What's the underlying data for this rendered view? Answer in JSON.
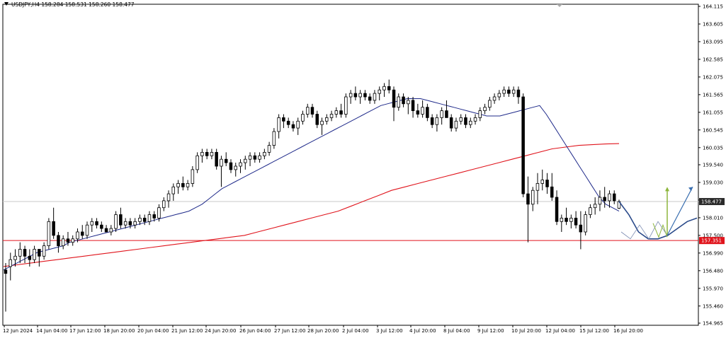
{
  "header": {
    "text": "USDJPY,H4  158.284 158.531 158.260 158.477"
  },
  "colors": {
    "background": "#ffffff",
    "candle": "#000000",
    "ma_fast": "#1f2a8a",
    "ma_slow": "#e0141c",
    "support_line": "#e0141c",
    "forecast_curve": "#2a4a8a",
    "forecast_arrow_up": "#8db63c",
    "forecast_arrow_blue": "#3a6fb0",
    "price_badge": "#2a2a2a",
    "level_badge": "#e0141c"
  },
  "chart_data": {
    "type": "candlestick",
    "symbol": "USDJPY",
    "timeframe": "H4",
    "title": "USDJPY,H4",
    "ohlc_last": {
      "open": 158.284,
      "high": 158.531,
      "low": 158.26,
      "close": 158.477
    },
    "ylim": [
      154.965,
      164.115
    ],
    "y_ticks": [
      "164.115",
      "163.605",
      "163.095",
      "162.585",
      "162.075",
      "161.565",
      "161.055",
      "160.545",
      "160.035",
      "159.540",
      "159.030",
      "158.520",
      "158.010",
      "157.500",
      "156.990",
      "156.480",
      "155.970",
      "155.460",
      "154.965"
    ],
    "x_ticks": [
      "12 Jun 2024",
      "14 Jun 04:00",
      "17 Jun 12:00",
      "18 Jun 20:00",
      "20 Jun 04:00",
      "21 Jun 12:00",
      "24 Jun 20:00",
      "26 Jun 04:00",
      "27 Jun 12:00",
      "28 Jun 20:00",
      "2 Jul 04:00",
      "3 Jul 12:00",
      "4 Jul 20:00",
      "8 Jul 04:00",
      "9 Jul 12:00",
      "10 Jul 20:00",
      "12 Jul 04:00",
      "15 Jul 12:00",
      "16 Jul 20:00"
    ],
    "current_price": "158.477",
    "support_level": "157.351",
    "candles": [
      [
        156.5,
        156.7,
        155.3,
        156.4
      ],
      [
        156.6,
        157.0,
        156.2,
        156.8
      ],
      [
        156.8,
        157.1,
        156.6,
        156.9
      ],
      [
        156.9,
        157.3,
        156.7,
        157.1
      ],
      [
        157.1,
        157.2,
        156.7,
        156.9
      ],
      [
        156.9,
        157.1,
        156.6,
        156.8
      ],
      [
        156.8,
        157.2,
        156.7,
        157.1
      ],
      [
        157.1,
        157.1,
        156.6,
        156.9
      ],
      [
        156.9,
        157.3,
        156.8,
        157.2
      ],
      [
        157.2,
        158.0,
        157.1,
        157.9
      ],
      [
        157.9,
        158.3,
        157.4,
        157.5
      ],
      [
        157.5,
        157.6,
        157.0,
        157.2
      ],
      [
        157.2,
        157.5,
        157.1,
        157.4
      ],
      [
        157.4,
        157.6,
        157.2,
        157.3
      ],
      [
        157.3,
        157.5,
        157.2,
        157.4
      ],
      [
        157.4,
        157.7,
        157.3,
        157.6
      ],
      [
        157.6,
        157.8,
        157.4,
        157.5
      ],
      [
        157.5,
        157.9,
        157.4,
        157.8
      ],
      [
        157.8,
        158.0,
        157.6,
        157.9
      ],
      [
        157.9,
        158.0,
        157.7,
        157.8
      ],
      [
        157.8,
        157.9,
        157.6,
        157.7
      ],
      [
        157.7,
        157.8,
        157.6,
        157.6
      ],
      [
        157.6,
        157.8,
        157.5,
        157.7
      ],
      [
        157.7,
        158.2,
        157.6,
        158.1
      ],
      [
        158.1,
        158.3,
        157.7,
        157.8
      ],
      [
        157.8,
        158.0,
        157.7,
        157.9
      ],
      [
        157.9,
        158.0,
        157.7,
        157.8
      ],
      [
        157.8,
        158.0,
        157.7,
        157.9
      ],
      [
        157.9,
        158.1,
        157.8,
        158.0
      ],
      [
        158.0,
        158.1,
        157.8,
        157.9
      ],
      [
        157.9,
        158.2,
        157.8,
        158.1
      ],
      [
        158.1,
        158.2,
        157.9,
        158.0
      ],
      [
        158.0,
        158.4,
        157.9,
        158.3
      ],
      [
        158.3,
        158.6,
        158.2,
        158.5
      ],
      [
        158.5,
        158.8,
        158.3,
        158.7
      ],
      [
        158.7,
        159.0,
        158.5,
        158.9
      ],
      [
        158.9,
        159.1,
        158.7,
        159.0
      ],
      [
        159.0,
        159.2,
        158.8,
        158.9
      ],
      [
        158.9,
        159.1,
        158.8,
        159.0
      ],
      [
        159.0,
        159.5,
        158.9,
        159.4
      ],
      [
        159.4,
        159.9,
        159.3,
        159.8
      ],
      [
        159.8,
        160.0,
        159.6,
        159.9
      ],
      [
        159.9,
        160.0,
        159.7,
        159.8
      ],
      [
        159.8,
        160.0,
        159.7,
        159.9
      ],
      [
        159.9,
        160.0,
        159.4,
        159.5
      ],
      [
        159.5,
        159.8,
        158.9,
        159.7
      ],
      [
        159.7,
        159.9,
        159.5,
        159.6
      ],
      [
        159.6,
        159.7,
        159.3,
        159.4
      ],
      [
        159.4,
        159.6,
        159.2,
        159.5
      ],
      [
        159.5,
        159.7,
        159.3,
        159.6
      ],
      [
        159.6,
        159.8,
        159.4,
        159.7
      ],
      [
        159.7,
        159.9,
        159.5,
        159.8
      ],
      [
        159.8,
        159.9,
        159.6,
        159.7
      ],
      [
        159.7,
        159.9,
        159.6,
        159.8
      ],
      [
        159.8,
        160.0,
        159.7,
        159.9
      ],
      [
        159.9,
        160.2,
        159.8,
        160.1
      ],
      [
        160.1,
        160.6,
        160.0,
        160.5
      ],
      [
        160.5,
        161.0,
        160.3,
        160.9
      ],
      [
        160.9,
        161.0,
        160.6,
        160.8
      ],
      [
        160.8,
        160.9,
        160.6,
        160.7
      ],
      [
        160.7,
        160.8,
        160.5,
        160.6
      ],
      [
        160.6,
        160.9,
        160.4,
        160.8
      ],
      [
        160.8,
        161.1,
        160.7,
        161.0
      ],
      [
        161.0,
        161.3,
        160.9,
        161.2
      ],
      [
        161.2,
        161.3,
        160.9,
        161.0
      ],
      [
        161.0,
        161.1,
        160.6,
        160.7
      ],
      [
        160.7,
        160.9,
        160.4,
        160.8
      ],
      [
        160.8,
        161.0,
        160.7,
        160.9
      ],
      [
        160.9,
        161.1,
        160.8,
        161.0
      ],
      [
        161.0,
        161.2,
        160.9,
        161.1
      ],
      [
        161.1,
        161.3,
        160.9,
        161.0
      ],
      [
        161.0,
        161.6,
        160.9,
        161.5
      ],
      [
        161.5,
        161.7,
        161.3,
        161.6
      ],
      [
        161.6,
        161.8,
        161.4,
        161.5
      ],
      [
        161.5,
        161.7,
        161.3,
        161.6
      ],
      [
        161.6,
        161.7,
        161.4,
        161.5
      ],
      [
        161.5,
        161.6,
        161.3,
        161.4
      ],
      [
        161.4,
        161.7,
        161.3,
        161.6
      ],
      [
        161.6,
        161.8,
        161.4,
        161.7
      ],
      [
        161.7,
        161.9,
        161.5,
        161.8
      ],
      [
        161.8,
        162.0,
        161.6,
        161.7
      ],
      [
        161.7,
        161.8,
        160.8,
        161.2
      ],
      [
        161.2,
        161.6,
        161.1,
        161.5
      ],
      [
        161.5,
        161.6,
        161.2,
        161.3
      ],
      [
        161.3,
        161.5,
        161.0,
        161.4
      ],
      [
        161.4,
        161.5,
        160.9,
        161.1
      ],
      [
        161.1,
        161.3,
        160.9,
        161.0
      ],
      [
        161.0,
        161.4,
        160.9,
        161.2
      ],
      [
        161.2,
        161.3,
        160.8,
        160.9
      ],
      [
        160.9,
        161.0,
        160.6,
        160.7
      ],
      [
        160.7,
        161.0,
        160.5,
        160.9
      ],
      [
        160.9,
        161.2,
        160.7,
        161.1
      ],
      [
        161.1,
        161.4,
        160.9,
        160.9
      ],
      [
        160.9,
        161.0,
        160.5,
        160.6
      ],
      [
        160.6,
        160.9,
        160.5,
        160.8
      ],
      [
        160.8,
        161.0,
        160.7,
        160.9
      ],
      [
        160.9,
        161.0,
        160.6,
        160.7
      ],
      [
        160.7,
        160.9,
        160.6,
        160.8
      ],
      [
        160.8,
        161.0,
        160.7,
        160.9
      ],
      [
        160.9,
        161.2,
        160.8,
        161.1
      ],
      [
        161.1,
        161.3,
        161.0,
        161.2
      ],
      [
        161.2,
        161.5,
        161.1,
        161.4
      ],
      [
        161.4,
        161.6,
        161.3,
        161.5
      ],
      [
        161.5,
        161.7,
        161.4,
        161.6
      ],
      [
        161.6,
        161.8,
        161.5,
        161.7
      ],
      [
        161.7,
        161.8,
        161.5,
        161.6
      ],
      [
        161.6,
        161.8,
        161.5,
        161.7
      ],
      [
        161.7,
        161.8,
        161.3,
        161.5
      ],
      [
        161.5,
        161.6,
        158.6,
        158.7
      ],
      [
        158.7,
        159.2,
        157.3,
        158.4
      ],
      [
        158.4,
        158.9,
        158.2,
        158.8
      ],
      [
        158.8,
        159.3,
        158.4,
        159.0
      ],
      [
        159.0,
        159.4,
        158.8,
        159.1
      ],
      [
        159.1,
        159.3,
        158.7,
        158.9
      ],
      [
        158.9,
        159.3,
        158.5,
        158.6
      ],
      [
        158.6,
        158.8,
        157.8,
        157.9
      ],
      [
        157.9,
        158.1,
        157.6,
        158.0
      ],
      [
        158.0,
        158.3,
        157.8,
        157.9
      ],
      [
        157.9,
        158.1,
        157.7,
        158.0
      ],
      [
        158.0,
        158.2,
        157.7,
        157.8
      ],
      [
        157.8,
        158.2,
        157.1,
        157.6
      ],
      [
        157.6,
        158.2,
        157.5,
        158.1
      ],
      [
        158.1,
        158.4,
        158.0,
        158.3
      ],
      [
        158.3,
        158.6,
        158.1,
        158.4
      ],
      [
        158.4,
        158.8,
        158.2,
        158.6
      ],
      [
        158.6,
        158.9,
        158.3,
        158.5
      ],
      [
        158.5,
        158.8,
        158.3,
        158.7
      ],
      [
        158.7,
        158.8,
        158.4,
        158.5
      ],
      [
        158.284,
        158.531,
        158.26,
        158.477
      ]
    ],
    "ma_fast": [
      156.5,
      156.6,
      156.7,
      156.8,
      156.9,
      157.0,
      157.05,
      157.1,
      157.15,
      157.2,
      157.3,
      157.35,
      157.4,
      157.45,
      157.5,
      157.55,
      157.6,
      157.65,
      157.7,
      157.75,
      157.8,
      157.85,
      157.9,
      157.95,
      158.0,
      158.05,
      158.1,
      158.15,
      158.2,
      158.3,
      158.4,
      158.55,
      158.7,
      158.85,
      158.95,
      159.05,
      159.15,
      159.25,
      159.35,
      159.45,
      159.55,
      159.65,
      159.75,
      159.85,
      159.95,
      160.05,
      160.15,
      160.25,
      160.35,
      160.45,
      160.55,
      160.65,
      160.75,
      160.85,
      160.95,
      161.05,
      161.15,
      161.25,
      161.3,
      161.35,
      161.4,
      161.45,
      161.45,
      161.45,
      161.4,
      161.35,
      161.3,
      161.25,
      161.2,
      161.15,
      161.1,
      161.05,
      161.0,
      160.95,
      160.95,
      160.95,
      161.0,
      161.05,
      161.1,
      161.15,
      161.2,
      161.25,
      161.0,
      160.7,
      160.4,
      160.1,
      159.8,
      159.5,
      159.2,
      158.9,
      158.6,
      158.4,
      158.3,
      158.2
    ],
    "ma_slow": [
      156.6,
      156.65,
      156.7,
      156.75,
      156.8,
      156.85,
      156.9,
      156.95,
      157.0,
      157.05,
      157.1,
      157.15,
      157.2,
      157.25,
      157.3,
      157.35,
      157.4,
      157.45,
      157.5,
      157.6,
      157.7,
      157.8,
      157.9,
      158.0,
      158.1,
      158.2,
      158.35,
      158.5,
      158.65,
      158.8,
      158.9,
      159.0,
      159.1,
      159.2,
      159.3,
      159.4,
      159.5,
      159.6,
      159.7,
      159.8,
      159.9,
      160.0,
      160.05,
      160.1,
      160.12,
      160.14,
      160.15
    ],
    "forecast": {
      "path_prices": [
        158.477,
        158.1,
        157.6,
        157.4,
        157.4,
        157.5,
        157.7,
        157.9,
        158.0
      ],
      "zigzag_prices": [
        157.6,
        157.4,
        157.8,
        157.4,
        157.9,
        157.5
      ],
      "arrow_up_from": 157.5,
      "arrow_up_to": 158.9,
      "arrow_diag_from": 157.5,
      "arrow_diag_to": 158.9
    }
  }
}
